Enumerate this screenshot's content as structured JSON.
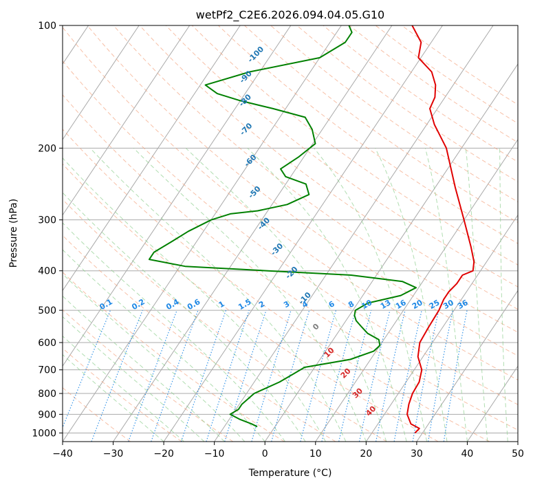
{
  "chart_data": {
    "type": "line",
    "subtype": "skew-t log-p diagram",
    "title": "wetPf2_C2E6.2026.094.04.05.G10",
    "xlabel": "Temperature (°C)",
    "ylabel": "Pressure (hPa)",
    "xlim": [
      -40,
      50
    ],
    "ylim": [
      1050,
      100
    ],
    "y_scale": "log",
    "grid": true,
    "x_ticks": [
      "−40",
      "−30",
      "−20",
      "−10",
      "0",
      "10",
      "20",
      "30",
      "40",
      "50"
    ],
    "x_tick_values": [
      -40,
      -30,
      -20,
      -10,
      0,
      10,
      20,
      30,
      40,
      50
    ],
    "y_ticks": [
      "100",
      "200",
      "300",
      "400",
      "500",
      "600",
      "700",
      "800",
      "900",
      "1000"
    ],
    "y_tick_values": [
      100,
      200,
      300,
      400,
      500,
      600,
      700,
      800,
      900,
      1000
    ],
    "series": [
      {
        "role": "temperature",
        "color": "#e00000",
        "points": [
          [
            1000,
            28.5
          ],
          [
            975,
            28.8
          ],
          [
            950,
            26.5
          ],
          [
            900,
            24.5
          ],
          [
            850,
            23.5
          ],
          [
            800,
            22.8
          ],
          [
            750,
            22.6
          ],
          [
            700,
            21.5
          ],
          [
            650,
            19.0
          ],
          [
            600,
            17.5
          ],
          [
            550,
            17.2
          ],
          [
            500,
            17.0
          ],
          [
            470,
            16.5
          ],
          [
            450,
            16.5
          ],
          [
            430,
            17.0
          ],
          [
            410,
            17.0
          ],
          [
            400,
            18.5
          ],
          [
            380,
            17.5
          ],
          [
            350,
            15.0
          ],
          [
            300,
            10.0
          ],
          [
            250,
            4.0
          ],
          [
            200,
            -3.0
          ],
          [
            175,
            -8.5
          ],
          [
            160,
            -11.5
          ],
          [
            150,
            -12.0
          ],
          [
            140,
            -13.5
          ],
          [
            130,
            -16.0
          ],
          [
            120,
            -20.5
          ],
          [
            110,
            -22.0
          ],
          [
            100,
            -26.0
          ]
        ]
      },
      {
        "role": "dewpoint",
        "color": "#008000",
        "points": [
          [
            965,
            -3.5
          ],
          [
            950,
            -5.0
          ],
          [
            925,
            -8.0
          ],
          [
            900,
            -10.5
          ],
          [
            875,
            -9.5
          ],
          [
            850,
            -9.5
          ],
          [
            800,
            -8.5
          ],
          [
            750,
            -5.0
          ],
          [
            720,
            -3.5
          ],
          [
            690,
            -2.0
          ],
          [
            660,
            6.0
          ],
          [
            630,
            9.5
          ],
          [
            610,
            10.0
          ],
          [
            590,
            9.0
          ],
          [
            570,
            6.0
          ],
          [
            550,
            4.0
          ],
          [
            530,
            2.0
          ],
          [
            515,
            1.0
          ],
          [
            500,
            0.5
          ],
          [
            480,
            2.0
          ],
          [
            460,
            7.5
          ],
          [
            440,
            9.5
          ],
          [
            425,
            6.0
          ],
          [
            410,
            -5.0
          ],
          [
            400,
            -22.0
          ],
          [
            390,
            -39.0
          ],
          [
            375,
            -47.0
          ],
          [
            360,
            -47.0
          ],
          [
            340,
            -45.0
          ],
          [
            320,
            -43.0
          ],
          [
            300,
            -40.0
          ],
          [
            290,
            -37.0
          ],
          [
            285,
            -32.0
          ],
          [
            275,
            -27.0
          ],
          [
            260,
            -24.0
          ],
          [
            245,
            -26.0
          ],
          [
            235,
            -31.0
          ],
          [
            225,
            -33.0
          ],
          [
            210,
            -31.0
          ],
          [
            195,
            -29.5
          ],
          [
            180,
            -32.0
          ],
          [
            168,
            -35.0
          ],
          [
            160,
            -42.5
          ],
          [
            153,
            -50.0
          ],
          [
            147,
            -55.5
          ],
          [
            140,
            -59.0
          ],
          [
            130,
            -52.0
          ],
          [
            120,
            -40.0
          ],
          [
            110,
            -37.0
          ],
          [
            104,
            -37.0
          ],
          [
            100,
            -38.5
          ]
        ]
      }
    ],
    "dry_adiabat_labels": [
      "-100",
      "-90",
      "-80",
      "-70",
      "-60",
      "-50",
      "-40",
      "-30",
      "-20",
      "-10",
      "0",
      "10",
      "20",
      "30",
      "40"
    ],
    "mixing_ratio_labels": [
      "0.1",
      "0.2",
      "0.4",
      "0.6",
      "1",
      "1.5",
      "2",
      "3",
      "4",
      "6",
      "8",
      "10",
      "13",
      "16",
      "20",
      "25",
      "30",
      "36"
    ],
    "colors": {
      "isotherm": "#a9a9a9",
      "isobar": "#a9a9a9",
      "dry_adiabat": "#f4a582",
      "moist_adiabat": "#8fcf8f",
      "mixing_ratio": "#1e88e5",
      "label_blue": "#1f77b4",
      "label_red": "#d62728",
      "label_gray": "#7f7f7f",
      "lcl_curve": "#d2b48c"
    }
  }
}
